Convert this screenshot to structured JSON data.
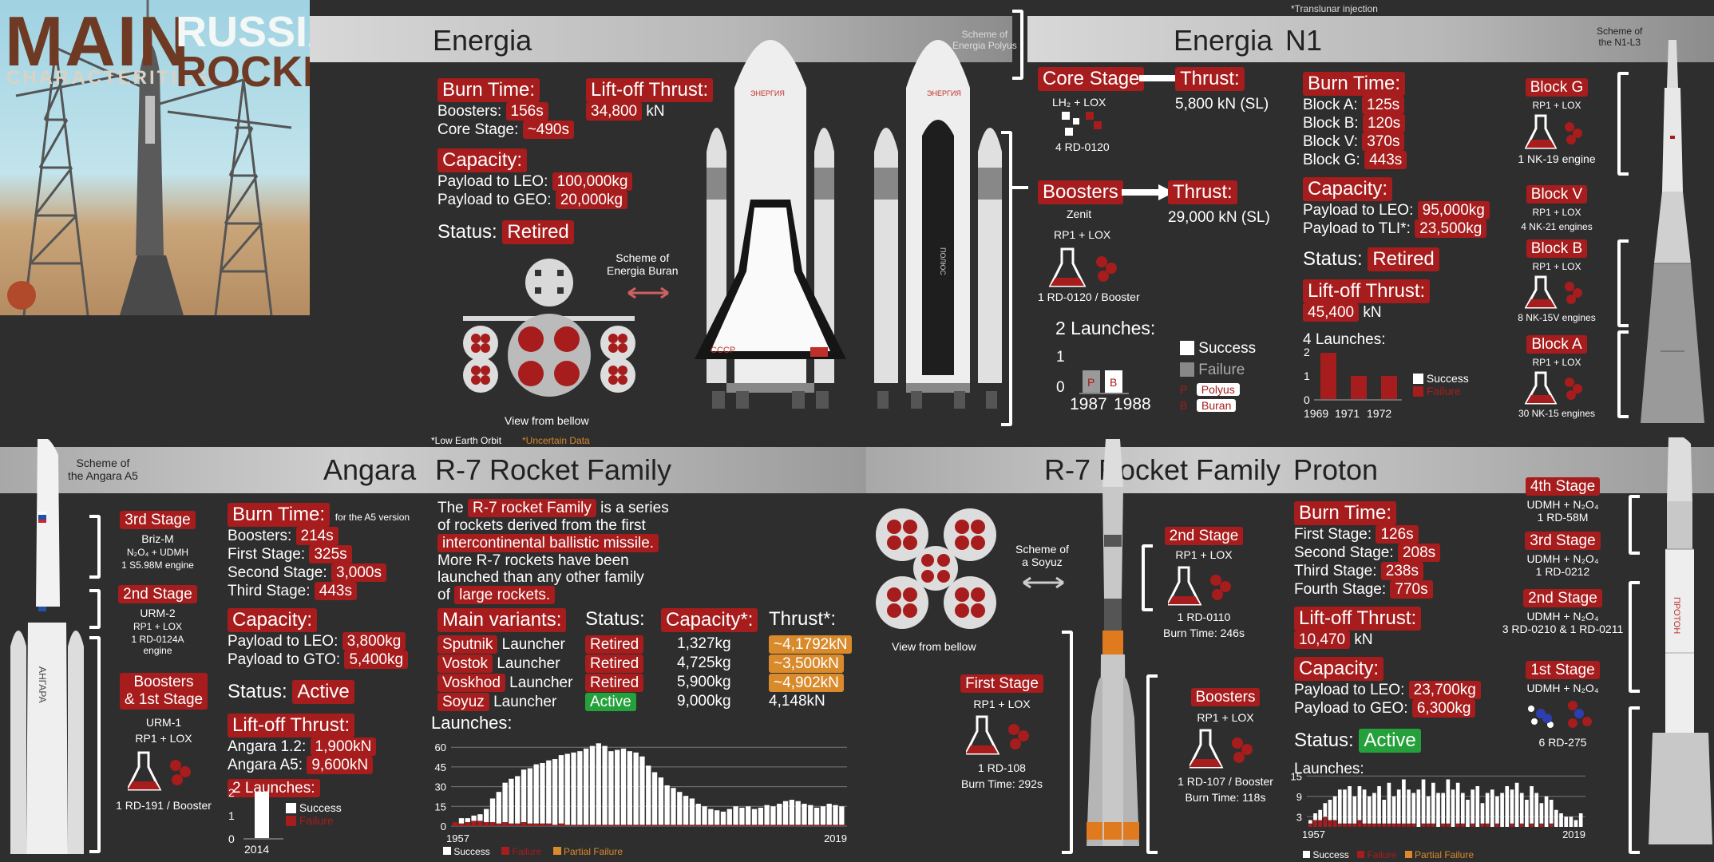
{
  "header": {
    "main": "MAIN",
    "russian": "RUSSIAN",
    "characteristics": "CHARACTERITICS",
    "rockets": "ROCKETS",
    "translunar_note": "*Translunar injection"
  },
  "colors": {
    "red": "#a71c1c",
    "green": "#25a13b",
    "orange": "#d98a2b",
    "background": "#2e2e2e"
  },
  "energia": {
    "title": "Energia",
    "burn_time_label": "Burn Time:",
    "boosters_label": "Boosters:",
    "boosters_value": "156s",
    "core_label": "Core Stage:",
    "core_value": "~490s",
    "thrust_label": "Lift-off Thrust:",
    "thrust_value": "34,800",
    "thrust_unit": "kN",
    "capacity_label": "Capacity:",
    "leo_label": "Payload to LEO:",
    "leo_value": "100,000kg",
    "geo_label": "Payload to GEO:",
    "geo_value": "20,000kg",
    "status_label": "Status:",
    "status_value": "Retired",
    "scheme_buran": "Scheme of\nEnergia Buran",
    "view_below": "View from bellow",
    "scheme_polyus": "Scheme of\nEnergia Polyus",
    "footnote_leo": "*Low Earth Orbit",
    "footnote_uncertain": "*Uncertain Data",
    "orbiter_label": "СССР",
    "vehicle_name": "ЭНЕРГИЯ",
    "polyus_name": "ПОЛЮС",
    "core_stage_label": "Core Stage",
    "core_fuel": "LH₂  +  LOX",
    "core_engines": "4 RD-0120",
    "core_thrust_label": "Thrust:",
    "core_thrust_value": "5,800 kN (SL)",
    "boosters_stage_label": "Boosters",
    "boosters_name": "Zenit",
    "boosters_fuel": "RP1  +  LOX",
    "boosters_engines": "1 RD-0120 / Booster",
    "boosters_thrust_label": "Thrust:",
    "boosters_thrust_value": "29,000 kN (SL)",
    "launches_label": "2 Launches:",
    "axis_1": "1",
    "axis_0": "0",
    "year_1": "1987",
    "year_2": "1988",
    "bar_1_letter": "P",
    "bar_2_letter": "B",
    "legend": {
      "success": "Success",
      "failure": "Failure",
      "p": "P",
      "polyus": "Polyus",
      "b": "B",
      "buran": "Buran"
    }
  },
  "n1": {
    "title": "N1",
    "burn_time_label": "Burn Time:",
    "a_label": "Block A:",
    "a_value": "125s",
    "b_label": "Block B:",
    "b_value": "120s",
    "v_label": "Block V:",
    "v_value": "370s",
    "g_label": "Block G:",
    "g_value": "443s",
    "capacity_label": "Capacity:",
    "leo_label": "Payload to LEO:",
    "leo_value": "95,000kg",
    "tli_label": "Payload to TLI*:",
    "tli_value": "23,500kg",
    "status_label": "Status:",
    "status_value": "Retired",
    "thrust_label": "Lift-off Thrust:",
    "thrust_value": "45,400",
    "thrust_unit": "kN",
    "launches_label": "4 Launches:",
    "axis_2": "2",
    "axis_1": "1",
    "axis_0": "0",
    "years": [
      "1969",
      "1971",
      "1972"
    ],
    "legend_success": "Success",
    "legend_failure": "Failure",
    "scheme": "Scheme of\nthe N1-L3",
    "blocks": [
      {
        "name": "Block G",
        "fuel": "RP1  +  LOX",
        "engines": "1 NK-19 engine"
      },
      {
        "name": "Block V",
        "fuel": "RP1  +  LOX",
        "engines": "4 NK-21 engines"
      },
      {
        "name": "Block B",
        "fuel": "RP1  +  LOX",
        "engines": "8 NK-15V engines"
      },
      {
        "name": "Block A",
        "fuel": "RP1  +  LOX",
        "engines": "30 NK-15 engines"
      }
    ]
  },
  "angara": {
    "title": "Angara",
    "scheme": "Scheme of\nthe Angara A5",
    "vehicle_name": "АНГАРА",
    "stages": [
      {
        "name": "3rd Stage",
        "engine_name": "Briz-M",
        "fuel": "N₂O₄  +  UDMH",
        "engines": "1 S5.98M engine"
      },
      {
        "name": "2nd Stage",
        "engine_name": "URM-2",
        "fuel": "RP1  +  LOX",
        "engines": "1 RD-0124A\nengine"
      },
      {
        "name": "Boosters\n& 1st Stage",
        "engine_name": "URM-1",
        "fuel": "RP1  +  LOX",
        "engines": "1 RD-191 / Booster"
      }
    ],
    "burn_time_label": "Burn Time:",
    "burn_note": "for the A5 version",
    "boosters_label": "Boosters:",
    "boosters_value": "214s",
    "first_label": "First Stage:",
    "first_value": "325s",
    "second_label": "Second Stage:",
    "second_value": "3,000s",
    "third_label": "Third Stage:",
    "third_value": "443s",
    "capacity_label": "Capacity:",
    "leo_label": "Payload to LEO:",
    "leo_value": "3,800kg",
    "gto_label": "Payload to GTO:",
    "gto_value": "5,400kg",
    "status_label": "Status:",
    "status_value": "Active",
    "thrust_label": "Lift-off Thrust:",
    "a12_label": "Angara 1.2:",
    "a12_value": "1,900kN",
    "a5_label": "Angara A5:",
    "a5_value": "9,600kN",
    "launches_label": "2 Launches:",
    "axis_2": "2",
    "axis_1": "1",
    "axis_0": "0",
    "year": "2014",
    "legend_success": "Success",
    "legend_failure": "Failure"
  },
  "r7": {
    "title": "R-7 Rocket Family",
    "desc_1": "The ",
    "desc_tag_1": "R-7 rocket Family",
    "desc_2": " is a series",
    "desc_3": "of rockets derived from the first",
    "desc_tag_2": "intercontinental ballistic missile.",
    "desc_4": "More R-7 rockets have been",
    "desc_5": "launched than any other family",
    "desc_6": "of ",
    "desc_tag_3": "large rockets.",
    "header_variants": "Main variants:",
    "header_status": "Status:",
    "header_capacity": "Capacity*:",
    "header_thrust": "Thrust*:",
    "variants": [
      {
        "name": "Sputnik",
        "suffix": " Launcher",
        "status": "Retired",
        "capacity": "1,327kg",
        "thrust": "~4,1792kN",
        "uncertain": true
      },
      {
        "name": "Vostok",
        "suffix": " Launcher",
        "status": "Retired",
        "capacity": "4,725kg",
        "thrust": "~3,500kN",
        "uncertain": true
      },
      {
        "name": "Voskhod",
        "suffix": " Launcher",
        "status": "Retired",
        "capacity": "5,900kg",
        "thrust": "~4,902kN",
        "uncertain": true
      },
      {
        "name": "Soyuz",
        "suffix": " Launcher",
        "status": "Active",
        "capacity": "9,000kg",
        "thrust": "4,148kN",
        "uncertain": false
      }
    ],
    "launches_label": "Launches:",
    "legend_success": "Success",
    "legend_failure": "Failure",
    "legend_partial": "Partial Failure",
    "scheme": "Scheme of\na Soyuz",
    "view_below": "View from bellow",
    "stages": [
      {
        "name": "2nd Stage",
        "fuel": "RP1  +  LOX",
        "engines": "1 RD-0110",
        "burn": "Burn Time: 246s"
      },
      {
        "name": "First Stage",
        "fuel": "RP1  +  LOX",
        "engines": "1 RD-108",
        "burn": "Burn Time: 292s"
      },
      {
        "name": "Boosters",
        "fuel": "RP1  +  LOX",
        "engines": "1 RD-107 / Booster",
        "burn": "Burn Time: 118s"
      }
    ]
  },
  "proton": {
    "title": "Proton",
    "vehicle_name": "ПРОТОН",
    "burn_time_label": "Burn Time:",
    "first_label": "First Stage:",
    "first_value": "126s",
    "second_label": "Second Stage:",
    "second_value": "208s",
    "third_label": "Third Stage:",
    "third_value": "238s",
    "fourth_label": "Fourth Stage:",
    "fourth_value": "770s",
    "thrust_label": "Lift-off Thrust:",
    "thrust_value": "10,470",
    "thrust_unit": "kN",
    "capacity_label": "Capacity:",
    "leo_label": "Payload to LEO:",
    "leo_value": "23,700kg",
    "geo_label": "Payload to GEO:",
    "geo_value": "6,300kg",
    "status_label": "Status:",
    "status_value": "Active",
    "launches_label": "Launches:",
    "legend_success": "Success",
    "legend_failure": "Failure",
    "legend_partial": "Partial Failure",
    "stages": [
      {
        "name": "4th Stage",
        "fuel": "UDMH + N₂O₄",
        "engines": "1 RD-58M"
      },
      {
        "name": "3rd Stage",
        "fuel": "UDMH + N₂O₄",
        "engines": "1 RD-0212"
      },
      {
        "name": "2nd Stage",
        "fuel": "UDMH + N₂O₄",
        "engines": "3 RD-0210 & 1 RD-0211"
      },
      {
        "name": "1st Stage",
        "fuel": "UDMH + N₂O₄",
        "engines": "6 RD-275"
      }
    ]
  },
  "chart_data": [
    {
      "type": "bar",
      "name": "Energia launches",
      "title": "2 Launches:",
      "categories": [
        "1987",
        "1988"
      ],
      "series": [
        {
          "name": "Success",
          "values": [
            0,
            1
          ]
        },
        {
          "name": "Failure",
          "values": [
            1,
            0
          ]
        }
      ],
      "labels": [
        "P",
        "B"
      ],
      "ylim": [
        0,
        1
      ]
    },
    {
      "type": "bar",
      "name": "N1 launches",
      "title": "4 Launches:",
      "categories": [
        "1969",
        "1971",
        "1972"
      ],
      "series": [
        {
          "name": "Success",
          "values": [
            0,
            0,
            0
          ]
        },
        {
          "name": "Failure",
          "values": [
            2,
            1,
            1
          ]
        }
      ],
      "ylim": [
        0,
        2
      ]
    },
    {
      "type": "bar",
      "name": "Angara launches",
      "title": "2 Launches:",
      "categories": [
        "2014"
      ],
      "series": [
        {
          "name": "Success",
          "values": [
            2
          ]
        },
        {
          "name": "Failure",
          "values": [
            0
          ]
        }
      ],
      "ylim": [
        0,
        2
      ]
    },
    {
      "type": "bar",
      "name": "R-7 launches",
      "title": "Launches:",
      "x_start": 1957,
      "x_end": 2019,
      "x_tick_labels": [
        "1957",
        "2019"
      ],
      "yticks": [
        0,
        15,
        30,
        45,
        60
      ],
      "ylim": [
        0,
        65
      ],
      "series": [
        {
          "name": "Success",
          "values": [
            0,
            4,
            3,
            4,
            5,
            10,
            18,
            24,
            30,
            34,
            36,
            40,
            42,
            45,
            46,
            48,
            50,
            52,
            54,
            55,
            56,
            58,
            60,
            62,
            60,
            56,
            57,
            58,
            56,
            55,
            52,
            45,
            40,
            36,
            30,
            28,
            25,
            22,
            20,
            16,
            14,
            12,
            11,
            10,
            12,
            14,
            13,
            14,
            12,
            13,
            15,
            14,
            16,
            18,
            19,
            18,
            16,
            15,
            13,
            14,
            16,
            15,
            14
          ]
        },
        {
          "name": "Failure",
          "values": [
            3,
            2,
            3,
            4,
            4,
            3,
            3,
            2,
            3,
            2,
            2,
            3,
            2,
            2,
            2,
            2,
            1,
            2,
            1,
            1,
            1,
            1,
            1,
            1,
            1,
            1,
            1,
            1,
            1,
            1,
            1,
            1,
            1,
            1,
            1,
            1,
            1,
            1,
            1,
            1,
            1,
            1,
            1,
            1,
            1,
            1,
            1,
            1,
            1,
            1,
            1,
            1,
            1,
            1,
            1,
            1,
            1,
            1,
            1,
            1,
            1,
            1,
            1
          ]
        },
        {
          "name": "Partial Failure",
          "values": [
            0,
            0,
            0,
            0,
            0,
            0,
            0,
            0,
            0,
            0,
            0,
            0,
            0,
            0,
            0,
            0,
            0,
            0,
            0,
            0,
            0,
            0,
            0,
            0,
            0,
            0,
            0,
            0,
            0,
            0,
            0,
            0,
            0,
            0,
            0,
            0,
            0,
            0,
            0,
            0,
            0,
            0,
            0,
            0,
            0,
            0,
            0,
            0,
            0,
            0,
            0,
            0,
            0,
            0,
            0,
            0,
            0,
            0,
            0,
            0,
            0,
            0,
            0
          ]
        }
      ]
    },
    {
      "type": "bar",
      "name": "Proton launches",
      "title": "Launches:",
      "x_start": 1965,
      "x_end": 2019,
      "x_tick_labels": [
        "1957",
        "2019"
      ],
      "yticks": [
        3,
        9,
        15
      ],
      "ylim": [
        0,
        16
      ],
      "series": [
        {
          "name": "Success",
          "values": [
            1,
            2,
            3,
            4,
            6,
            7,
            10,
            10,
            11,
            8,
            10,
            10,
            8,
            9,
            11,
            7,
            12,
            8,
            10,
            13,
            10,
            9,
            11,
            13,
            8,
            12,
            10,
            9,
            13,
            11,
            12,
            9,
            8,
            10,
            12,
            6,
            9,
            11,
            8,
            10,
            12,
            10,
            13,
            9,
            8,
            11,
            10,
            6,
            9,
            7,
            5,
            4,
            3,
            3,
            2,
            4
          ]
        },
        {
          "name": "Failure",
          "values": [
            1,
            2,
            2,
            3,
            2,
            2,
            1,
            1,
            1,
            1,
            2,
            1,
            1,
            1,
            1,
            1,
            1,
            1,
            1,
            1,
            1,
            1,
            0,
            1,
            1,
            1,
            0,
            1,
            1,
            0,
            1,
            1,
            0,
            1,
            0,
            1,
            1,
            0,
            1,
            0,
            0,
            1,
            0,
            1,
            0,
            1,
            0,
            1,
            0,
            1,
            0,
            0,
            0,
            0,
            0,
            0
          ]
        },
        {
          "name": "Partial Failure",
          "values": [
            0,
            0,
            0,
            0,
            0,
            0,
            0,
            0,
            0,
            0,
            0,
            0,
            0,
            0,
            0,
            0,
            0,
            0,
            0,
            0,
            0,
            0,
            0,
            0,
            0,
            0,
            0,
            0,
            0,
            0,
            0,
            0,
            0,
            0,
            0,
            0,
            0,
            0,
            0,
            0,
            0,
            0,
            0,
            0,
            0,
            0,
            0,
            0,
            0,
            0,
            0,
            0,
            0,
            0,
            0,
            0
          ]
        }
      ]
    }
  ]
}
